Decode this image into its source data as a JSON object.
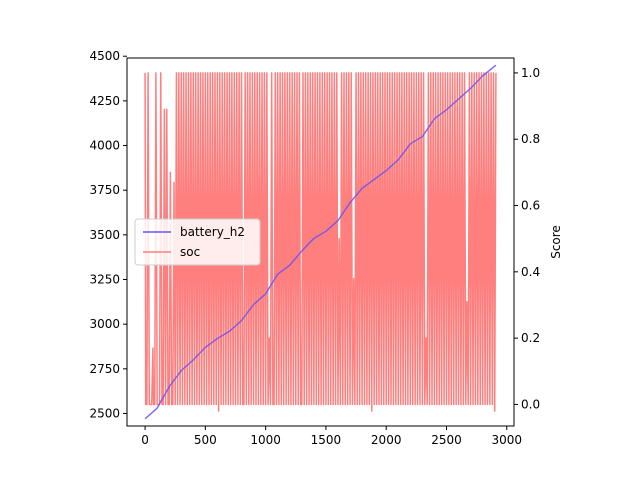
{
  "chart_data": {
    "type": "line",
    "title": "",
    "xlabel": "",
    "ylabel_left": "",
    "ylabel_right": "Score",
    "xlim": [
      -150,
      3060
    ],
    "ylim_left": [
      2430,
      4490
    ],
    "ylim_right": [
      -0.065,
      1.045
    ],
    "x_ticks": [
      0,
      500,
      1000,
      1500,
      2000,
      2500,
      3000
    ],
    "y_left_ticks": [
      2500,
      2750,
      3000,
      3250,
      3500,
      3750,
      4000,
      4250,
      4500
    ],
    "y_right_ticks": [
      0.0,
      0.2,
      0.4,
      0.6,
      0.8,
      1.0
    ],
    "legend": {
      "placement": "center-left",
      "entries": [
        "battery_h2",
        "soc"
      ]
    },
    "series": [
      {
        "name": "battery_h2",
        "axis": "left",
        "color": "#6a55ee",
        "points": [
          [
            0,
            2470
          ],
          [
            100,
            2530
          ],
          [
            200,
            2650
          ],
          [
            300,
            2740
          ],
          [
            400,
            2800
          ],
          [
            500,
            2870
          ],
          [
            600,
            2920
          ],
          [
            700,
            2960
          ],
          [
            800,
            3020
          ],
          [
            900,
            3110
          ],
          [
            1000,
            3170
          ],
          [
            1100,
            3280
          ],
          [
            1200,
            3330
          ],
          [
            1300,
            3410
          ],
          [
            1400,
            3480
          ],
          [
            1500,
            3520
          ],
          [
            1600,
            3580
          ],
          [
            1700,
            3680
          ],
          [
            1800,
            3760
          ],
          [
            1900,
            3810
          ],
          [
            2000,
            3860
          ],
          [
            2100,
            3920
          ],
          [
            2200,
            4010
          ],
          [
            2300,
            4050
          ],
          [
            2400,
            4150
          ],
          [
            2500,
            4200
          ],
          [
            2600,
            4260
          ],
          [
            2700,
            4320
          ],
          [
            2800,
            4390
          ],
          [
            2910,
            4450
          ]
        ]
      },
      {
        "name": "soc",
        "axis": "right",
        "color": "#ff7f7f",
        "points": [
          [
            0,
            1.0
          ],
          [
            5,
            0.0
          ],
          [
            15,
            0.0
          ],
          [
            25,
            1.0
          ],
          [
            35,
            0.0
          ],
          [
            55,
            0.0
          ],
          [
            65,
            0.17
          ],
          [
            70,
            0.0
          ],
          [
            80,
            0.0
          ],
          [
            90,
            1.0
          ],
          [
            100,
            0.0
          ],
          [
            120,
            0.0
          ],
          [
            130,
            1.0
          ],
          [
            140,
            0.0
          ],
          [
            150,
            0.0
          ],
          [
            160,
            0.89
          ],
          [
            170,
            0.0
          ],
          [
            180,
            0.89
          ],
          [
            190,
            0.0
          ],
          [
            200,
            0.0
          ],
          [
            210,
            0.7
          ],
          [
            220,
            0.0
          ],
          [
            230,
            0.0
          ],
          [
            240,
            0.67
          ],
          [
            250,
            0.0
          ],
          [
            260,
            1.0
          ],
          [
            270,
            0.0
          ],
          [
            280,
            1.0
          ],
          [
            290,
            0.0
          ],
          [
            300,
            1.0
          ],
          [
            310,
            0.0
          ],
          [
            320,
            1.0
          ],
          [
            330,
            0.0
          ],
          [
            340,
            1.0
          ],
          [
            350,
            0.0
          ],
          [
            360,
            1.0
          ],
          [
            370,
            0.0
          ],
          [
            380,
            1.0
          ],
          [
            390,
            0.0
          ],
          [
            400,
            1.0
          ],
          [
            410,
            0.0
          ],
          [
            420,
            1.0
          ],
          [
            430,
            0.0
          ],
          [
            440,
            1.0
          ],
          [
            450,
            0.0
          ],
          [
            460,
            1.0
          ],
          [
            470,
            0.0
          ],
          [
            480,
            1.0
          ],
          [
            490,
            0.0
          ],
          [
            500,
            1.0
          ],
          [
            510,
            0.0
          ],
          [
            520,
            1.0
          ],
          [
            530,
            0.0
          ],
          [
            540,
            1.0
          ],
          [
            550,
            0.0
          ],
          [
            560,
            1.0
          ],
          [
            570,
            0.0
          ],
          [
            580,
            1.0
          ],
          [
            590,
            0.0
          ],
          [
            600,
            1.0
          ],
          [
            610,
            -0.02
          ],
          [
            620,
            1.0
          ],
          [
            630,
            0.0
          ],
          [
            640,
            1.0
          ],
          [
            650,
            0.0
          ],
          [
            660,
            1.0
          ],
          [
            670,
            0.0
          ],
          [
            680,
            1.0
          ],
          [
            690,
            0.0
          ],
          [
            700,
            1.0
          ],
          [
            710,
            0.0
          ],
          [
            720,
            1.0
          ],
          [
            730,
            0.0
          ],
          [
            740,
            1.0
          ],
          [
            750,
            0.0
          ],
          [
            760,
            1.0
          ],
          [
            770,
            0.0
          ],
          [
            780,
            1.0
          ],
          [
            790,
            0.0
          ],
          [
            800,
            1.0
          ],
          [
            810,
            0.0
          ],
          [
            820,
            0.0
          ],
          [
            830,
            1.0
          ],
          [
            840,
            0.0
          ],
          [
            850,
            1.0
          ],
          [
            860,
            0.0
          ],
          [
            870,
            1.0
          ],
          [
            880,
            0.0
          ],
          [
            890,
            1.0
          ],
          [
            900,
            0.0
          ],
          [
            910,
            1.0
          ],
          [
            920,
            0.0
          ],
          [
            930,
            1.0
          ],
          [
            940,
            0.0
          ],
          [
            950,
            1.0
          ],
          [
            960,
            0.0
          ],
          [
            970,
            1.0
          ],
          [
            980,
            0.0
          ],
          [
            990,
            1.0
          ],
          [
            1000,
            0.0
          ],
          [
            1010,
            1.0
          ],
          [
            1020,
            0.0
          ],
          [
            1030,
            0.2
          ],
          [
            1040,
            0.0
          ],
          [
            1050,
            1.0
          ],
          [
            1060,
            0.0
          ],
          [
            1070,
            0.0
          ],
          [
            1080,
            1.0
          ],
          [
            1090,
            0.0
          ],
          [
            1100,
            1.0
          ],
          [
            1110,
            0.0
          ],
          [
            1120,
            1.0
          ],
          [
            1130,
            0.0
          ],
          [
            1140,
            1.0
          ],
          [
            1150,
            0.0
          ],
          [
            1160,
            1.0
          ],
          [
            1170,
            0.0
          ],
          [
            1180,
            1.0
          ],
          [
            1190,
            0.0
          ],
          [
            1200,
            1.0
          ],
          [
            1210,
            0.0
          ],
          [
            1220,
            1.0
          ],
          [
            1230,
            0.0
          ],
          [
            1240,
            1.0
          ],
          [
            1250,
            0.0
          ],
          [
            1260,
            1.0
          ],
          [
            1270,
            0.0
          ],
          [
            1280,
            1.0
          ],
          [
            1290,
            0.0
          ],
          [
            1300,
            0.0
          ],
          [
            1310,
            1.0
          ],
          [
            1320,
            0.0
          ],
          [
            1330,
            1.0
          ],
          [
            1340,
            0.0
          ],
          [
            1350,
            1.0
          ],
          [
            1360,
            0.0
          ],
          [
            1370,
            1.0
          ],
          [
            1380,
            0.0
          ],
          [
            1390,
            1.0
          ],
          [
            1400,
            0.0
          ],
          [
            1410,
            1.0
          ],
          [
            1420,
            0.0
          ],
          [
            1430,
            1.0
          ],
          [
            1440,
            0.0
          ],
          [
            1450,
            1.0
          ],
          [
            1460,
            0.0
          ],
          [
            1470,
            1.0
          ],
          [
            1480,
            0.0
          ],
          [
            1490,
            1.0
          ],
          [
            1500,
            0.0
          ],
          [
            1510,
            1.0
          ],
          [
            1520,
            0.0
          ],
          [
            1530,
            1.0
          ],
          [
            1540,
            0.0
          ],
          [
            1550,
            1.0
          ],
          [
            1560,
            0.0
          ],
          [
            1570,
            1.0
          ],
          [
            1580,
            0.0
          ],
          [
            1590,
            1.0
          ],
          [
            1600,
            0.0
          ],
          [
            1610,
            0.5
          ],
          [
            1620,
            0.0
          ],
          [
            1630,
            1.0
          ],
          [
            1640,
            0.0
          ],
          [
            1650,
            1.0
          ],
          [
            1660,
            0.0
          ],
          [
            1670,
            1.0
          ],
          [
            1680,
            0.0
          ],
          [
            1690,
            1.0
          ],
          [
            1700,
            0.0
          ],
          [
            1710,
            1.0
          ],
          [
            1720,
            0.0
          ],
          [
            1730,
            0.38
          ],
          [
            1740,
            0.0
          ],
          [
            1750,
            1.0
          ],
          [
            1760,
            0.0
          ],
          [
            1770,
            1.0
          ],
          [
            1780,
            0.0
          ],
          [
            1790,
            1.0
          ],
          [
            1800,
            0.0
          ],
          [
            1810,
            1.0
          ],
          [
            1820,
            0.0
          ],
          [
            1830,
            1.0
          ],
          [
            1840,
            0.0
          ],
          [
            1850,
            1.0
          ],
          [
            1860,
            0.0
          ],
          [
            1870,
            1.0
          ],
          [
            1880,
            -0.02
          ],
          [
            1890,
            1.0
          ],
          [
            1900,
            0.0
          ],
          [
            1910,
            1.0
          ],
          [
            1920,
            0.0
          ],
          [
            1930,
            1.0
          ],
          [
            1940,
            0.0
          ],
          [
            1950,
            1.0
          ],
          [
            1960,
            0.0
          ],
          [
            1970,
            1.0
          ],
          [
            1980,
            0.0
          ],
          [
            1990,
            1.0
          ],
          [
            2000,
            0.0
          ],
          [
            2010,
            1.0
          ],
          [
            2020,
            0.0
          ],
          [
            2030,
            1.0
          ],
          [
            2040,
            0.0
          ],
          [
            2050,
            1.0
          ],
          [
            2060,
            0.0
          ],
          [
            2070,
            1.0
          ],
          [
            2080,
            0.0
          ],
          [
            2090,
            1.0
          ],
          [
            2100,
            0.0
          ],
          [
            2110,
            1.0
          ],
          [
            2120,
            0.0
          ],
          [
            2130,
            1.0
          ],
          [
            2140,
            0.0
          ],
          [
            2150,
            1.0
          ],
          [
            2160,
            0.0
          ],
          [
            2170,
            1.0
          ],
          [
            2180,
            0.0
          ],
          [
            2190,
            1.0
          ],
          [
            2200,
            0.0
          ],
          [
            2210,
            1.0
          ],
          [
            2220,
            0.0
          ],
          [
            2230,
            1.0
          ],
          [
            2240,
            0.0
          ],
          [
            2250,
            1.0
          ],
          [
            2260,
            0.0
          ],
          [
            2270,
            1.0
          ],
          [
            2280,
            0.0
          ],
          [
            2290,
            1.0
          ],
          [
            2300,
            0.0
          ],
          [
            2310,
            1.0
          ],
          [
            2320,
            0.0
          ],
          [
            2330,
            0.2
          ],
          [
            2340,
            0.0
          ],
          [
            2350,
            1.0
          ],
          [
            2360,
            0.0
          ],
          [
            2370,
            1.0
          ],
          [
            2380,
            0.0
          ],
          [
            2390,
            1.0
          ],
          [
            2400,
            0.0
          ],
          [
            2410,
            1.0
          ],
          [
            2420,
            0.0
          ],
          [
            2430,
            1.0
          ],
          [
            2440,
            0.0
          ],
          [
            2450,
            1.0
          ],
          [
            2460,
            0.0
          ],
          [
            2470,
            1.0
          ],
          [
            2480,
            0.0
          ],
          [
            2490,
            1.0
          ],
          [
            2500,
            0.0
          ],
          [
            2510,
            1.0
          ],
          [
            2520,
            0.0
          ],
          [
            2530,
            1.0
          ],
          [
            2540,
            0.0
          ],
          [
            2550,
            1.0
          ],
          [
            2560,
            0.0
          ],
          [
            2570,
            1.0
          ],
          [
            2580,
            0.0
          ],
          [
            2590,
            1.0
          ],
          [
            2600,
            0.0
          ],
          [
            2610,
            1.0
          ],
          [
            2620,
            0.0
          ],
          [
            2630,
            1.0
          ],
          [
            2640,
            0.0
          ],
          [
            2650,
            1.0
          ],
          [
            2660,
            0.0
          ],
          [
            2670,
            0.31
          ],
          [
            2680,
            0.0
          ],
          [
            2690,
            1.0
          ],
          [
            2700,
            0.0
          ],
          [
            2710,
            1.0
          ],
          [
            2720,
            0.0
          ],
          [
            2730,
            1.0
          ],
          [
            2740,
            0.0
          ],
          [
            2750,
            1.0
          ],
          [
            2760,
            0.0
          ],
          [
            2770,
            1.0
          ],
          [
            2780,
            0.0
          ],
          [
            2790,
            1.0
          ],
          [
            2800,
            0.0
          ],
          [
            2810,
            1.0
          ],
          [
            2820,
            0.0
          ],
          [
            2830,
            1.0
          ],
          [
            2840,
            0.0
          ],
          [
            2850,
            1.0
          ],
          [
            2860,
            0.0
          ],
          [
            2870,
            1.0
          ],
          [
            2880,
            0.0
          ],
          [
            2890,
            1.0
          ],
          [
            2900,
            -0.02
          ],
          [
            2910,
            1.0
          ]
        ]
      }
    ]
  }
}
